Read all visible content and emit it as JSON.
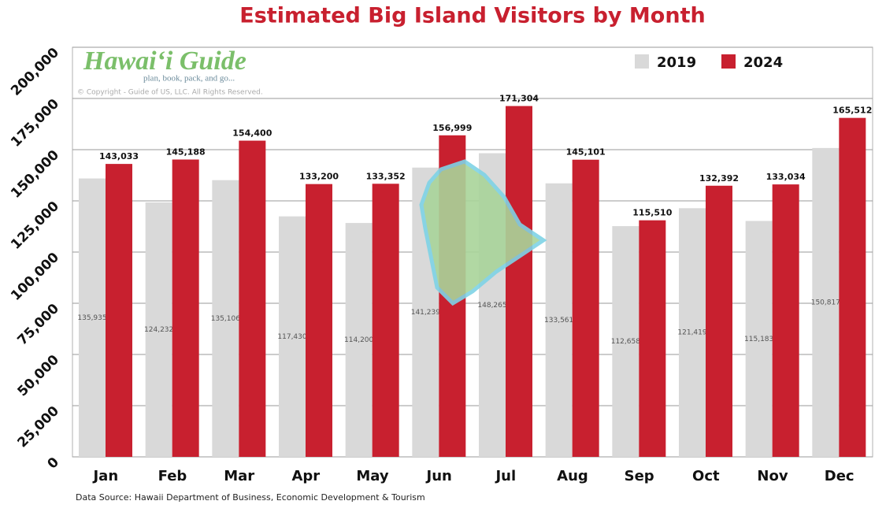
{
  "chart_data": {
    "type": "bar",
    "title": "Estimated Big Island Visitors by Month",
    "logo": "Hawaiʻi Guide",
    "logo_tagline": "plan, book, pack, and go...",
    "copyright": "© Copyright - Guide of US, LLC. All Rights Reserved.",
    "source": "Data Source: Hawaii Department of Business, Economic Development & Tourism",
    "categories": [
      "Jan",
      "Feb",
      "Mar",
      "Apr",
      "May",
      "Jun",
      "Jul",
      "Aug",
      "Sep",
      "Oct",
      "Nov",
      "Dec"
    ],
    "series": [
      {
        "name": "2019",
        "color": "#d9d9d9",
        "values": [
          135935,
          124232,
          135106,
          117430,
          114200,
          141239,
          148265,
          133561,
          112658,
          121419,
          115183,
          150817
        ],
        "value_labels": [
          "135,935",
          "124,232",
          "135,106",
          "117,430",
          "114,200",
          "141,239",
          "148,265",
          "133,561",
          "112,658",
          "121,419",
          "115,183",
          "150,817"
        ]
      },
      {
        "name": "2024",
        "color": "#c8202f",
        "values": [
          143033,
          145188,
          154400,
          133200,
          133352,
          156999,
          171304,
          145101,
          115510,
          132392,
          133034,
          165512
        ],
        "value_labels": [
          "143,033",
          "145,188",
          "154,400",
          "133,200",
          "133,352",
          "156,999",
          "171,304",
          "145,101",
          "115,510",
          "132,392",
          "133,034",
          "165,512"
        ]
      }
    ],
    "ylim": [
      0,
      200000
    ],
    "yticks": [
      0,
      {
        "value": 25000,
        "label": "25,000"
      },
      {
        "value": 50000,
        "label": "50,000"
      },
      {
        "value": 75000,
        "label": "75,000"
      },
      {
        "value": 100000,
        "label": "100,000"
      },
      {
        "value": 125000,
        "label": "125,000"
      },
      {
        "value": 150000,
        "label": "150,000"
      },
      {
        "value": 175000,
        "label": "175,000"
      },
      {
        "value": 200000,
        "label": "200,000"
      }
    ],
    "grid": true,
    "legend": "top-right"
  }
}
